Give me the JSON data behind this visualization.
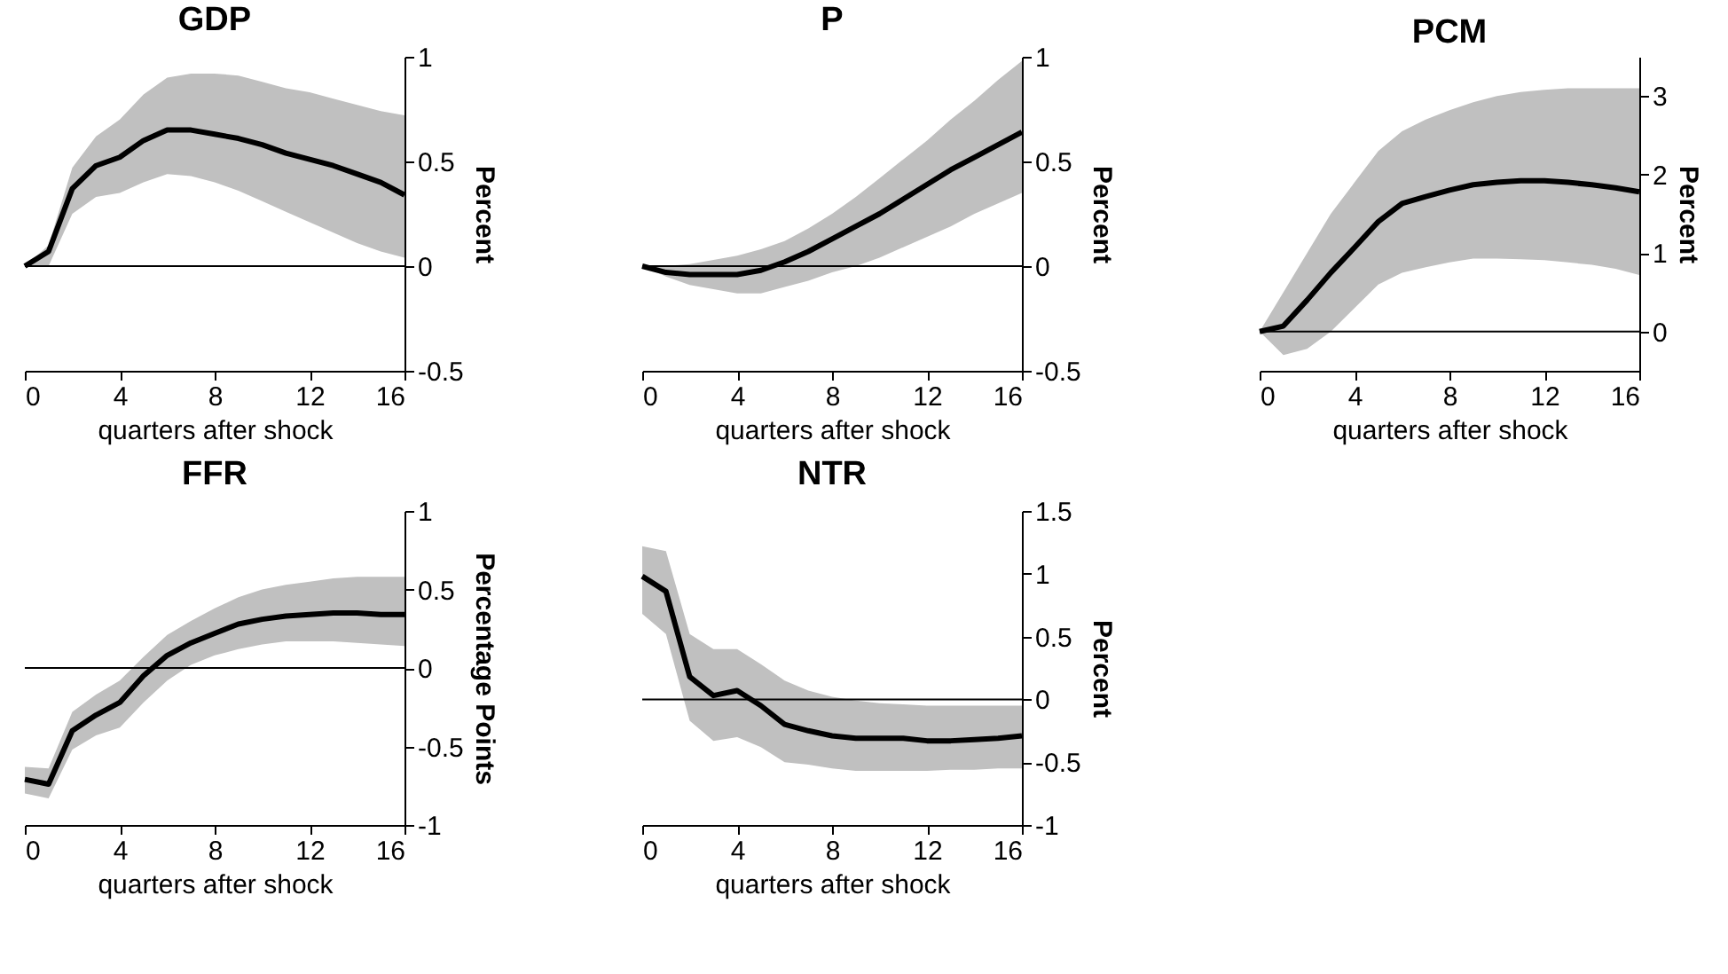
{
  "chart_data": [
    {
      "type": "line",
      "title": "GDP",
      "xlabel": "quarters after shock",
      "ylabel": "Percent",
      "x": [
        0,
        1,
        2,
        3,
        4,
        5,
        6,
        7,
        8,
        9,
        10,
        11,
        12,
        13,
        14,
        15,
        16
      ],
      "xlim": [
        0,
        16
      ],
      "xticks": [
        0,
        4,
        8,
        12,
        16
      ],
      "ylim": [
        -0.5,
        1
      ],
      "yticks": [
        -0.5,
        0,
        0.5,
        1
      ],
      "grid": false,
      "series": [
        {
          "color": "#000000",
          "values": [
            0,
            0.07,
            0.37,
            0.48,
            0.52,
            0.6,
            0.65,
            0.65,
            0.63,
            0.61,
            0.58,
            0.54,
            0.51,
            0.48,
            0.44,
            0.4,
            0.34
          ],
          "lower": [
            0,
            0,
            0.25,
            0.33,
            0.35,
            0.4,
            0.44,
            0.43,
            0.4,
            0.36,
            0.31,
            0.26,
            0.21,
            0.16,
            0.11,
            0.07,
            0.04
          ],
          "upper": [
            0,
            0.1,
            0.47,
            0.62,
            0.7,
            0.82,
            0.9,
            0.92,
            0.92,
            0.91,
            0.88,
            0.85,
            0.83,
            0.8,
            0.77,
            0.74,
            0.72
          ]
        }
      ],
      "ref_lines": [
        {
          "axis": "y",
          "value": 0,
          "color": "#000000"
        }
      ]
    },
    {
      "type": "line",
      "title": "P",
      "xlabel": "quarters after shock",
      "ylabel": "Percent",
      "x": [
        0,
        1,
        2,
        3,
        4,
        5,
        6,
        7,
        8,
        9,
        10,
        11,
        12,
        13,
        14,
        15,
        16
      ],
      "xlim": [
        0,
        16
      ],
      "xticks": [
        0,
        4,
        8,
        12,
        16
      ],
      "ylim": [
        -0.5,
        1
      ],
      "yticks": [
        -0.5,
        0,
        0.5,
        1
      ],
      "grid": false,
      "series": [
        {
          "color": "#000000",
          "values": [
            0,
            -0.03,
            -0.04,
            -0.04,
            -0.04,
            -0.02,
            0.02,
            0.07,
            0.13,
            0.19,
            0.25,
            0.32,
            0.39,
            0.46,
            0.52,
            0.58,
            0.64
          ],
          "lower": [
            0,
            -0.05,
            -0.09,
            -0.11,
            -0.13,
            -0.13,
            -0.1,
            -0.07,
            -0.03,
            0,
            0.04,
            0.09,
            0.14,
            0.19,
            0.25,
            0.3,
            0.35
          ],
          "upper": [
            0,
            0,
            0.01,
            0.03,
            0.05,
            0.08,
            0.12,
            0.18,
            0.25,
            0.33,
            0.42,
            0.51,
            0.6,
            0.7,
            0.79,
            0.89,
            0.98
          ]
        }
      ],
      "ref_lines": [
        {
          "axis": "y",
          "value": 0,
          "color": "#000000"
        }
      ]
    },
    {
      "type": "line",
      "title": "PCM",
      "xlabel": "quarters after shock",
      "ylabel": "Percent",
      "x": [
        0,
        1,
        2,
        3,
        4,
        5,
        6,
        7,
        8,
        9,
        10,
        11,
        12,
        13,
        14,
        15,
        16
      ],
      "xlim": [
        0,
        16
      ],
      "xticks": [
        0,
        4,
        8,
        12,
        16
      ],
      "ylim": [
        -0.5,
        3.5
      ],
      "yticks": [
        0,
        1,
        2,
        3
      ],
      "grid": false,
      "series": [
        {
          "color": "#000000",
          "values": [
            0,
            0.07,
            0.4,
            0.75,
            1.07,
            1.4,
            1.63,
            1.72,
            1.8,
            1.87,
            1.9,
            1.92,
            1.92,
            1.9,
            1.87,
            1.83,
            1.78
          ],
          "lower": [
            0,
            -0.3,
            -0.22,
            0,
            0.3,
            0.6,
            0.75,
            0.82,
            0.88,
            0.93,
            0.93,
            0.92,
            0.91,
            0.88,
            0.85,
            0.8,
            0.72
          ],
          "upper": [
            0,
            0.5,
            1.0,
            1.5,
            1.9,
            2.3,
            2.55,
            2.7,
            2.82,
            2.92,
            3.0,
            3.05,
            3.08,
            3.1,
            3.1,
            3.1,
            3.1
          ]
        }
      ],
      "ref_lines": [
        {
          "axis": "y",
          "value": 0,
          "color": "#000000"
        }
      ]
    },
    {
      "type": "line",
      "title": "FFR",
      "xlabel": "quarters after shock",
      "ylabel": "Percentage Points",
      "x": [
        0,
        1,
        2,
        3,
        4,
        5,
        6,
        7,
        8,
        9,
        10,
        11,
        12,
        13,
        14,
        15,
        16
      ],
      "xlim": [
        0,
        16
      ],
      "xticks": [
        0,
        4,
        8,
        12,
        16
      ],
      "ylim": [
        -1,
        1
      ],
      "yticks": [
        -1,
        -0.5,
        0,
        0.5,
        1
      ],
      "grid": false,
      "series": [
        {
          "color": "#000000",
          "values": [
            -0.71,
            -0.74,
            -0.4,
            -0.3,
            -0.22,
            -0.05,
            0.08,
            0.16,
            0.22,
            0.28,
            0.31,
            0.33,
            0.34,
            0.35,
            0.35,
            0.34,
            0.34
          ],
          "lower": [
            -0.8,
            -0.83,
            -0.52,
            -0.43,
            -0.38,
            -0.22,
            -0.08,
            0.02,
            0.08,
            0.12,
            0.15,
            0.17,
            0.17,
            0.17,
            0.16,
            0.15,
            0.14
          ],
          "upper": [
            -0.63,
            -0.64,
            -0.28,
            -0.17,
            -0.08,
            0.07,
            0.21,
            0.3,
            0.38,
            0.45,
            0.5,
            0.53,
            0.55,
            0.57,
            0.58,
            0.58,
            0.58
          ]
        }
      ],
      "ref_lines": [
        {
          "axis": "y",
          "value": 0,
          "color": "#000000"
        }
      ]
    },
    {
      "type": "line",
      "title": "NTR",
      "xlabel": "quarters after shock",
      "ylabel": "Percent",
      "x": [
        0,
        1,
        2,
        3,
        4,
        5,
        6,
        7,
        8,
        9,
        10,
        11,
        12,
        13,
        14,
        15,
        16
      ],
      "xlim": [
        0,
        16
      ],
      "xticks": [
        0,
        4,
        8,
        12,
        16
      ],
      "ylim": [
        -1,
        1.5
      ],
      "yticks": [
        -1,
        -0.5,
        0,
        0.5,
        1,
        1.5
      ],
      "grid": false,
      "series": [
        {
          "color": "#000000",
          "values": [
            0.98,
            0.86,
            0.18,
            0.03,
            0.07,
            -0.05,
            -0.2,
            -0.25,
            -0.29,
            -0.31,
            -0.31,
            -0.31,
            -0.33,
            -0.33,
            -0.32,
            -0.31,
            -0.29
          ],
          "lower": [
            0.68,
            0.52,
            -0.17,
            -0.33,
            -0.3,
            -0.38,
            -0.5,
            -0.52,
            -0.55,
            -0.57,
            -0.57,
            -0.57,
            -0.57,
            -0.56,
            -0.56,
            -0.55,
            -0.55
          ],
          "upper": [
            1.22,
            1.18,
            0.52,
            0.4,
            0.4,
            0.28,
            0.15,
            0.07,
            0.02,
            -0.01,
            -0.03,
            -0.04,
            -0.05,
            -0.05,
            -0.05,
            -0.05,
            -0.05
          ]
        }
      ],
      "ref_lines": [
        {
          "axis": "y",
          "value": 0,
          "color": "#000000"
        }
      ]
    }
  ]
}
